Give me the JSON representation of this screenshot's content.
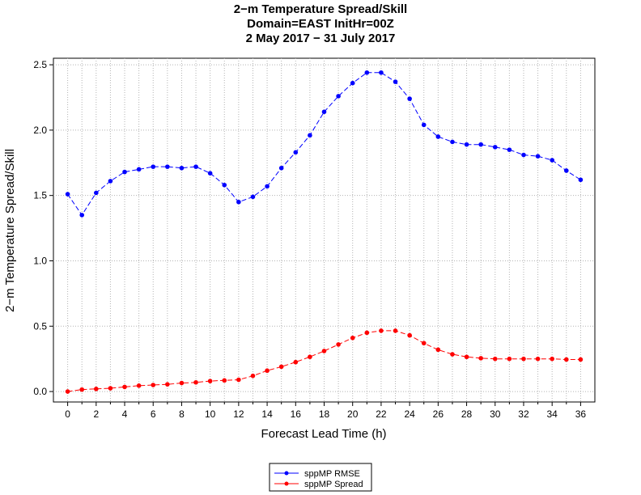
{
  "chart_data": {
    "type": "line",
    "title_lines": [
      "2−m Temperature Spread/Skill",
      "Domain=EAST InitHr=00Z",
      "2 May 2017 − 31 July 2017"
    ],
    "xlabel": "Forecast Lead Time (h)",
    "ylabel": "2−m Temperature Spread/Skill",
    "xlim": [
      -1,
      37
    ],
    "ylim": [
      -0.08,
      2.55
    ],
    "xticks": [
      0,
      2,
      4,
      6,
      8,
      10,
      12,
      14,
      16,
      18,
      20,
      22,
      24,
      26,
      28,
      30,
      32,
      34,
      36
    ],
    "yticks": [
      0.0,
      0.5,
      1.0,
      1.5,
      2.0,
      2.5
    ],
    "ytick_labels": [
      "0.0",
      "0.5",
      "1.0",
      "1.5",
      "2.0",
      "2.5"
    ],
    "grid": true,
    "legend_position": "bottom-center",
    "x": [
      0,
      1,
      2,
      3,
      4,
      5,
      6,
      7,
      8,
      9,
      10,
      11,
      12,
      13,
      14,
      15,
      16,
      17,
      18,
      19,
      20,
      21,
      22,
      23,
      24,
      25,
      26,
      27,
      28,
      29,
      30,
      31,
      32,
      33,
      34,
      35,
      36
    ],
    "series": [
      {
        "name": "sppMP RMSE",
        "color": "#0000ff",
        "values": [
          1.51,
          1.35,
          1.52,
          1.61,
          1.68,
          1.7,
          1.72,
          1.72,
          1.71,
          1.72,
          1.67,
          1.58,
          1.45,
          1.49,
          1.57,
          1.71,
          1.83,
          1.96,
          2.14,
          2.26,
          2.36,
          2.44,
          2.44,
          2.37,
          2.24,
          2.04,
          1.95,
          1.91,
          1.89,
          1.89,
          1.87,
          1.85,
          1.81,
          1.8,
          1.77,
          1.69,
          1.62
        ]
      },
      {
        "name": "sppMP Spread",
        "color": "#ff0000",
        "values": [
          0.0,
          0.015,
          0.02,
          0.025,
          0.035,
          0.045,
          0.05,
          0.055,
          0.065,
          0.07,
          0.08,
          0.085,
          0.09,
          0.12,
          0.16,
          0.19,
          0.225,
          0.265,
          0.31,
          0.36,
          0.41,
          0.45,
          0.465,
          0.465,
          0.43,
          0.37,
          0.32,
          0.285,
          0.265,
          0.255,
          0.25,
          0.25,
          0.25,
          0.25,
          0.25,
          0.245,
          0.245
        ]
      }
    ]
  }
}
